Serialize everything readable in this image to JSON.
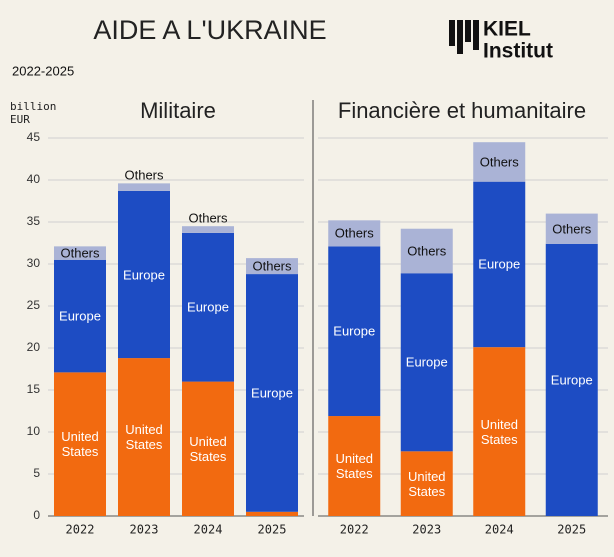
{
  "title": "AIDE A L'UKRAINE",
  "subtitle": "2022-2025",
  "logo": [
    "KIEL",
    "Institut"
  ],
  "chart_data": [
    {
      "type": "bar",
      "stacked": true,
      "title": "Militaire",
      "ylabel": "billion EUR",
      "categories": [
        "2022",
        "2023",
        "2024",
        "2025"
      ],
      "series": [
        {
          "name": "United States",
          "color": "#f26a10",
          "values": [
            17.1,
            18.8,
            16.0,
            0.5
          ]
        },
        {
          "name": "Europe",
          "color": "#1d4cc3",
          "values": [
            13.4,
            19.9,
            17.7,
            28.3
          ]
        },
        {
          "name": "Others",
          "color": "#aab3d6",
          "values": [
            1.6,
            0.9,
            0.8,
            1.9
          ]
        }
      ],
      "ylim": [
        0,
        45
      ],
      "yticks": [
        0,
        5,
        10,
        15,
        20,
        25,
        30,
        35,
        40,
        45
      ],
      "grid": true
    },
    {
      "type": "bar",
      "stacked": true,
      "title": "Financière et humanitaire",
      "categories": [
        "2022",
        "2023",
        "2024",
        "2025"
      ],
      "series": [
        {
          "name": "United States",
          "color": "#f26a10",
          "values": [
            11.9,
            7.7,
            20.1,
            0
          ]
        },
        {
          "name": "Europe",
          "color": "#1d4cc3",
          "values": [
            20.2,
            21.2,
            19.7,
            32.4
          ]
        },
        {
          "name": "Others",
          "color": "#aab3d6",
          "values": [
            3.1,
            5.3,
            4.7,
            3.6
          ]
        }
      ],
      "ylim": [
        0,
        45
      ],
      "yticks": [
        0,
        5,
        10,
        15,
        20,
        25,
        30,
        35,
        40,
        45
      ],
      "grid": true
    }
  ]
}
